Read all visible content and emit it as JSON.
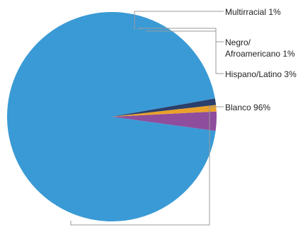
{
  "chart_data": {
    "type": "pie",
    "title": "",
    "start_angle_deg": 10,
    "direction": "counterclockwise",
    "legend": "none",
    "slices": [
      {
        "label": "Blanco",
        "display": "Blanco 96%",
        "value": 96,
        "color": "#3a9ad5"
      },
      {
        "label": "Hispano/Latino",
        "display": "Hispano/Latino 3%",
        "value": 3,
        "color": "#8e4d9d"
      },
      {
        "label": "Negro/Afroamericano",
        "display_lines": [
          "Negro/",
          "Afroamericano 1%"
        ],
        "value": 1,
        "color": "#e9a12b"
      },
      {
        "label": "Multirracial",
        "display": "Multirracial 1%",
        "value": 1,
        "color": "#2a3f6b"
      }
    ]
  }
}
